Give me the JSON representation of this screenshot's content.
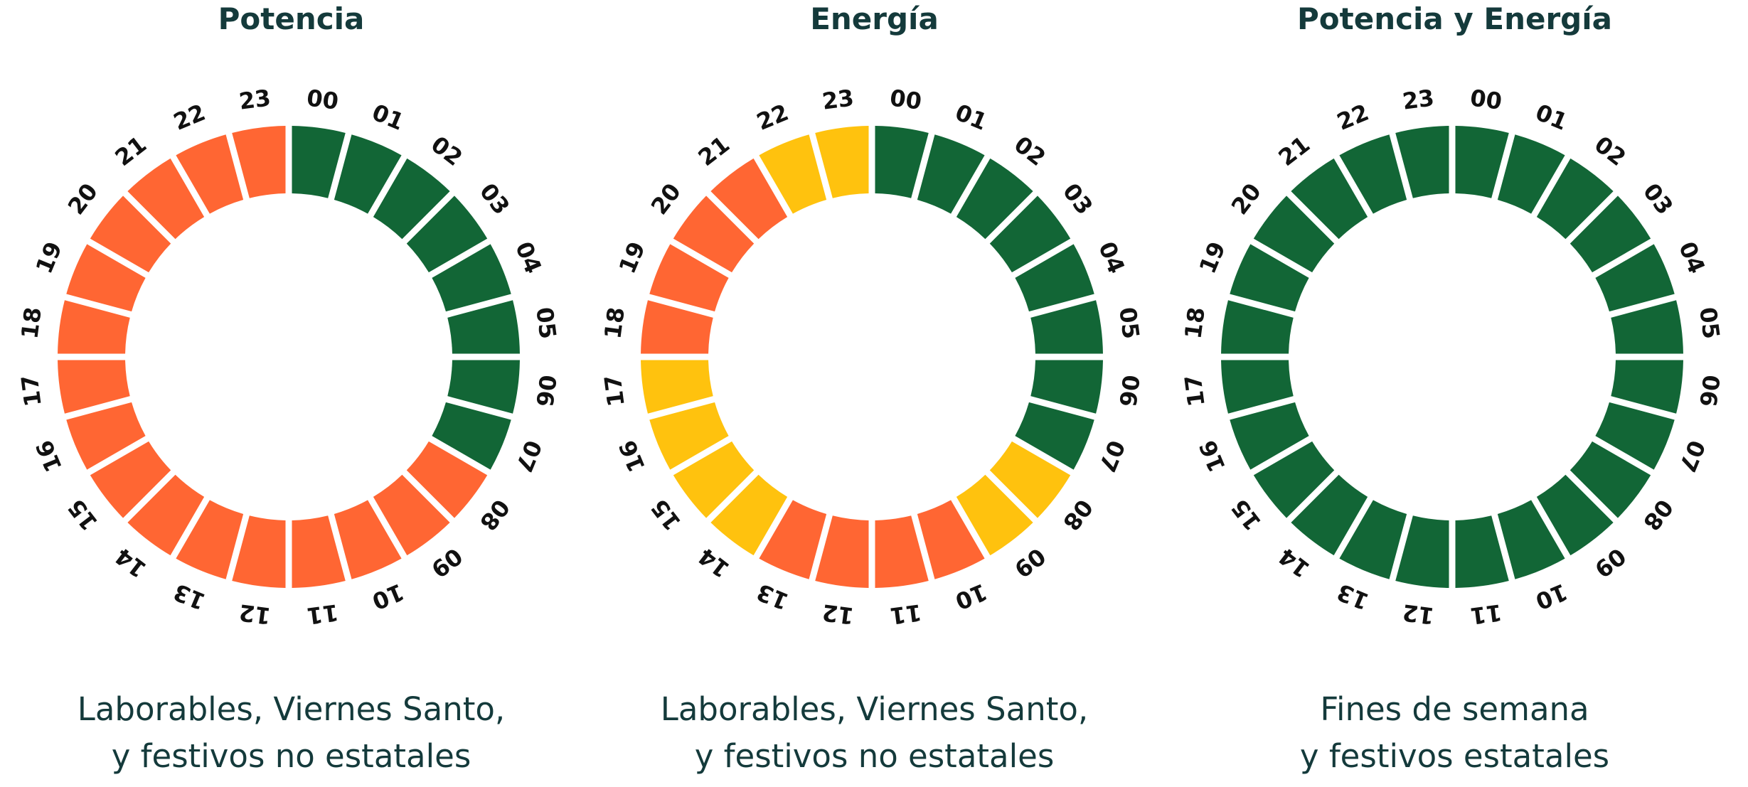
{
  "legend": {
    "colors": {
      "punta": "#FF6633",
      "llano": "#FFC20E",
      "valle": "#126636"
    }
  },
  "panels": [
    {
      "title": "Potencia",
      "caption_line1": "Laborables, Viernes Santo,",
      "caption_line2": "y festivos no estatales",
      "hours": [
        "00",
        "01",
        "02",
        "03",
        "04",
        "05",
        "06",
        "07",
        "08",
        "09",
        "10",
        "11",
        "12",
        "13",
        "14",
        "15",
        "16",
        "17",
        "18",
        "19",
        "20",
        "21",
        "22",
        "23"
      ],
      "periods": [
        "valle",
        "valle",
        "valle",
        "valle",
        "valle",
        "valle",
        "valle",
        "valle",
        "punta",
        "punta",
        "punta",
        "punta",
        "punta",
        "punta",
        "punta",
        "punta",
        "punta",
        "punta",
        "punta",
        "punta",
        "punta",
        "punta",
        "punta",
        "punta"
      ]
    },
    {
      "title": "Energía",
      "caption_line1": "Laborables, Viernes Santo,",
      "caption_line2": "y festivos no estatales",
      "hours": [
        "00",
        "01",
        "02",
        "03",
        "04",
        "05",
        "06",
        "07",
        "08",
        "09",
        "10",
        "11",
        "12",
        "13",
        "14",
        "15",
        "16",
        "17",
        "18",
        "19",
        "20",
        "21",
        "22",
        "23"
      ],
      "periods": [
        "valle",
        "valle",
        "valle",
        "valle",
        "valle",
        "valle",
        "valle",
        "valle",
        "llano",
        "llano",
        "punta",
        "punta",
        "punta",
        "punta",
        "llano",
        "llano",
        "llano",
        "llano",
        "punta",
        "punta",
        "punta",
        "punta",
        "llano",
        "llano"
      ]
    },
    {
      "title": "Potencia y Energía",
      "caption_line1": "Fines de semana",
      "caption_line2": "y festivos estatales",
      "hours": [
        "00",
        "01",
        "02",
        "03",
        "04",
        "05",
        "06",
        "07",
        "08",
        "09",
        "10",
        "11",
        "12",
        "13",
        "14",
        "15",
        "16",
        "17",
        "18",
        "19",
        "20",
        "21",
        "22",
        "23"
      ],
      "periods": [
        "valle",
        "valle",
        "valle",
        "valle",
        "valle",
        "valle",
        "valle",
        "valle",
        "valle",
        "valle",
        "valle",
        "valle",
        "valle",
        "valle",
        "valle",
        "valle",
        "valle",
        "valle",
        "valle",
        "valle",
        "valle",
        "valle",
        "valle",
        "valle"
      ]
    }
  ]
}
